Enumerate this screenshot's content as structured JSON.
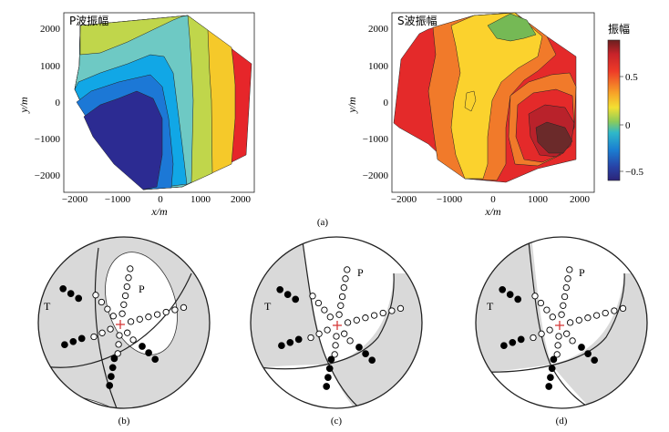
{
  "colors": {
    "p_blue_dark": "#2c2b92",
    "p_blue": "#1c78d6",
    "p_cyan": "#11a7e6",
    "p_teal": "#6ec9c4",
    "p_yg": "#c0d64b",
    "p_yellow": "#f5c92a",
    "p_red": "#e6262a",
    "s_red": "#e42a2a",
    "s_orange": "#f17a2a",
    "s_yellow": "#fbd22d",
    "s_green": "#75b955",
    "s_darkred": "#6b2a2a",
    "s_crimson": "#b9222b",
    "sphere_fill": "#d9d9d9",
    "cross": "#d63a3a"
  },
  "panel_a": {
    "caption": "(a)",
    "p_map": {
      "title": "P波振幅",
      "xlabel": "x/m",
      "ylabel": "y/m",
      "x_ticks": [
        "−2000",
        "−1000",
        "0",
        "1000",
        "2000"
      ],
      "y_ticks": [
        "2000",
        "1000",
        "0",
        "−1000",
        "−2000"
      ]
    },
    "s_map": {
      "title": "S波振幅",
      "xlabel": "x/m",
      "ylabel": "y/m",
      "x_ticks": [
        "−2000",
        "−1000",
        "0",
        "1000",
        "2000"
      ],
      "y_ticks": [
        "2000",
        "1000",
        "0",
        "−1000",
        "−2000"
      ]
    },
    "colorbar": {
      "title": "振幅",
      "ticks": [
        "0.5",
        "0",
        "−0.5"
      ]
    }
  },
  "chart_data": [
    {
      "type": "heatmap",
      "title": "P波振幅",
      "xlabel": "x/m",
      "ylabel": "y/m",
      "xlim": [
        -2300,
        2300
      ],
      "ylim": [
        -2400,
        2400
      ],
      "x_ticks": [
        -2000,
        -1000,
        0,
        1000,
        2000
      ],
      "y_ticks": [
        -2000,
        -1000,
        0,
        1000,
        2000
      ],
      "description_levels": [
        -0.65,
        -0.35,
        -0.1,
        0.15,
        0.4,
        0.6,
        0.85
      ]
    },
    {
      "type": "heatmap",
      "title": "S波振幅",
      "xlabel": "x/m",
      "ylabel": "y/m",
      "xlim": [
        -2300,
        2300
      ],
      "ylim": [
        -2400,
        2400
      ],
      "x_ticks": [
        -2000,
        -1000,
        0,
        1000,
        2000
      ],
      "y_ticks": [
        -2000,
        -1000,
        0,
        1000,
        2000
      ],
      "colorbar": {
        "label": "振幅",
        "range": [
          -0.7,
          0.9
        ],
        "ticks": [
          -0.5,
          0,
          0.5
        ]
      }
    }
  ],
  "focal_b": {
    "caption": "(b)",
    "t_label": "T",
    "p_label": "P"
  },
  "focal_c": {
    "caption": "(c)",
    "t_label": "T",
    "p_label": "P"
  },
  "focal_d": {
    "caption": "(d)",
    "t_label": "T",
    "p_label": "P"
  }
}
